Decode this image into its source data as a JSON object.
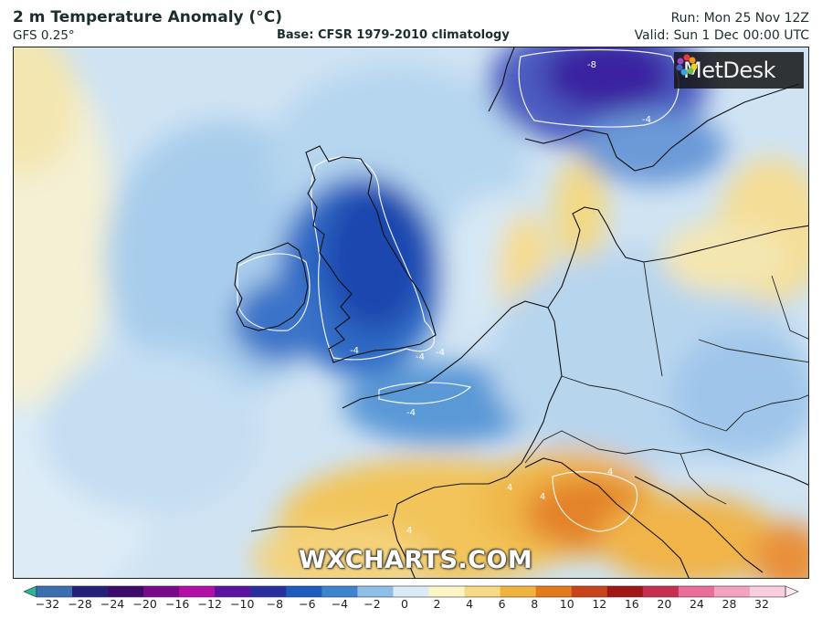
{
  "header": {
    "title": "2 m Temperature Anomaly (°C)",
    "model": "GFS 0.25°",
    "base": "Base: CFSR 1979-2010 climatology",
    "run": "Run: Mon 25 Nov 12Z",
    "valid": "Valid: Sun 1 Dec 00:00 UTC"
  },
  "map": {
    "region": "Western Europe",
    "brand_logo": "MetDesk",
    "watermark": "WXCHARTS.COM",
    "contour_labels": [
      "-4",
      "-4",
      "-4",
      "-4",
      "-4",
      "-8",
      "4",
      "4",
      "4",
      "4"
    ]
  },
  "colorbar": {
    "ticks": [
      "−32",
      "−28",
      "−24",
      "−20",
      "−16",
      "−12",
      "−10",
      "−8",
      "−6",
      "−4",
      "−2",
      "0",
      "2",
      "4",
      "6",
      "8",
      "10",
      "12",
      "16",
      "20",
      "24",
      "28",
      "32"
    ],
    "colors": [
      "#2bb39b",
      "#3a6fb0",
      "#24217a",
      "#3d0a6b",
      "#7b0a8a",
      "#b20fa8",
      "#5a14a0",
      "#2a2f9f",
      "#1e5bbf",
      "#3d84cf",
      "#8fbfe6",
      "#dcecf7",
      "#fdf5c4",
      "#f7d985",
      "#f0b43e",
      "#e37a1c",
      "#c9441a",
      "#a31616",
      "#c5304e",
      "#e86d9a",
      "#f3a3c0",
      "#f9cfe0",
      "#fbe7ef"
    ]
  }
}
